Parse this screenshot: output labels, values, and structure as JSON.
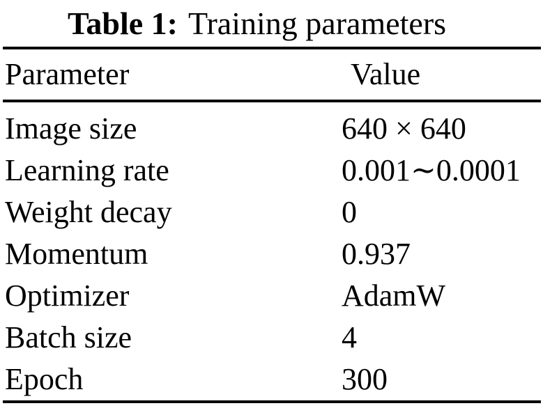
{
  "caption": {
    "label": "Table 1:",
    "text": "Training parameters"
  },
  "table": {
    "headers": [
      "Parameter",
      "Value"
    ],
    "rows": [
      [
        "Image size",
        "640 × 640"
      ],
      [
        "Learning rate",
        "0.001∼0.0001"
      ],
      [
        "Weight decay",
        "0"
      ],
      [
        "Momentum",
        "0.937"
      ],
      [
        "Optimizer",
        "AdamW"
      ],
      [
        "Batch size",
        "4"
      ],
      [
        "Epoch",
        "300"
      ]
    ]
  },
  "colors": {
    "text": "#000000",
    "background": "#ffffff",
    "rule": "#000000"
  }
}
